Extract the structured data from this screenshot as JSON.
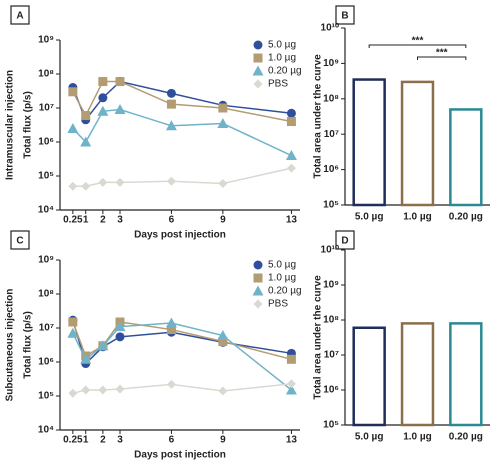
{
  "chart_data": [
    {
      "type": "line",
      "panel": "A",
      "side_label": "Intramuscular injection",
      "y_label": "Total flux (p/s)",
      "x_label": "Days post injection",
      "log_y": true,
      "legend": "top-right",
      "x": [
        0.25,
        1,
        2,
        3,
        6,
        9,
        13
      ],
      "xlim": [
        -0.5,
        13.5
      ],
      "xticks": [
        0.25,
        1,
        2,
        3,
        6,
        9,
        13
      ],
      "ylim": [
        10000,
        1000000000
      ],
      "yticks": [
        {
          "value": 10000,
          "label": "10⁴"
        },
        {
          "value": 100000,
          "label": "10⁵"
        },
        {
          "value": 1000000,
          "label": "10⁶"
        },
        {
          "value": 10000000,
          "label": "10⁷"
        },
        {
          "value": 100000000,
          "label": "10⁸"
        },
        {
          "value": 1000000000,
          "label": "10⁹"
        }
      ],
      "series": [
        {
          "name": "5.0 µg",
          "color": "#2f4f9c",
          "marker": "circle",
          "values": [
            40000000,
            4500000,
            20000000,
            60000000,
            27000000,
            12000000,
            7000000
          ]
        },
        {
          "name": "1.0 µg",
          "color": "#b39c72",
          "marker": "square",
          "values": [
            30000000,
            6000000,
            60000000,
            60000000,
            13000000,
            10000000,
            4000000
          ]
        },
        {
          "name": "0.20 µg",
          "color": "#6fb3c9",
          "marker": "triangle",
          "values": [
            2500000,
            1000000,
            8000000,
            9000000,
            3000000,
            3500000,
            400000
          ]
        },
        {
          "name": "PBS",
          "color": "#d9d9d2",
          "marker": "diamond",
          "values": [
            50000,
            50000,
            65000,
            65000,
            70000,
            60000,
            170000
          ]
        }
      ]
    },
    {
      "type": "bar",
      "panel": "B",
      "y_label": "Total area under the curve",
      "log_y": true,
      "categories": [
        "5.0 µg",
        "1.0 µg",
        "0.20 µg"
      ],
      "values": [
        350000000,
        300000000,
        50000000
      ],
      "colors": [
        "#1f2d5c",
        "#8c6e4a",
        "#2a8a94"
      ],
      "ylim": [
        100000,
        10000000000
      ],
      "yticks": [
        {
          "value": 100000,
          "label": "10⁵"
        },
        {
          "value": 1000000,
          "label": "10⁶"
        },
        {
          "value": 10000000,
          "label": "10⁷"
        },
        {
          "value": 100000000,
          "label": "10⁸"
        },
        {
          "value": 1000000000,
          "label": "10⁹"
        },
        {
          "value": 10000000000,
          "label": "10¹⁰"
        }
      ],
      "annotations": [
        "***",
        "***"
      ]
    },
    {
      "type": "line",
      "panel": "C",
      "side_label": "Subcutaneous injection",
      "y_label": "Total flux (p/s)",
      "x_label": "Days post injection",
      "log_y": true,
      "legend": "top-right",
      "x": [
        0.25,
        1,
        2,
        3,
        6,
        9,
        13
      ],
      "xlim": [
        -0.5,
        13.5
      ],
      "xticks": [
        0.25,
        1,
        2,
        3,
        6,
        9,
        13
      ],
      "ylim": [
        10000,
        1000000000
      ],
      "yticks": [
        {
          "value": 10000,
          "label": "10⁴"
        },
        {
          "value": 100000,
          "label": "10⁵"
        },
        {
          "value": 1000000,
          "label": "10⁶"
        },
        {
          "value": 10000000,
          "label": "10⁷"
        },
        {
          "value": 100000000,
          "label": "10⁸"
        },
        {
          "value": 1000000000,
          "label": "10⁹"
        }
      ],
      "series": [
        {
          "name": "5.0 µg",
          "color": "#2f4f9c",
          "marker": "circle",
          "values": [
            17000000,
            900000,
            2800000,
            5500000,
            7500000,
            3800000,
            1800000
          ]
        },
        {
          "name": "1.0 µg",
          "color": "#b39c72",
          "marker": "square",
          "values": [
            15000000,
            1500000,
            3000000,
            15000000,
            9000000,
            4000000,
            1200000
          ]
        },
        {
          "name": "0.20 µg",
          "color": "#6fb3c9",
          "marker": "triangle",
          "values": [
            7000000,
            1200000,
            3000000,
            11000000,
            14000000,
            6000000,
            150000
          ]
        },
        {
          "name": "PBS",
          "color": "#d9d9d2",
          "marker": "diamond",
          "values": [
            120000,
            150000,
            150000,
            160000,
            220000,
            140000,
            230000
          ]
        }
      ]
    },
    {
      "type": "bar",
      "panel": "D",
      "y_label": "Total area under the curve",
      "log_y": true,
      "categories": [
        "5.0 µg",
        "1.0 µg",
        "0.20 µg"
      ],
      "values": [
        60000000,
        80000000,
        80000000
      ],
      "colors": [
        "#1f2d5c",
        "#8c6e4a",
        "#2a8a94"
      ],
      "ylim": [
        100000,
        10000000000
      ],
      "yticks": [
        {
          "value": 100000,
          "label": "10⁵"
        },
        {
          "value": 1000000,
          "label": "10⁶"
        },
        {
          "value": 10000000,
          "label": "10⁷"
        },
        {
          "value": 100000000,
          "label": "10⁸"
        },
        {
          "value": 1000000000,
          "label": "10⁹"
        },
        {
          "value": 10000000000,
          "label": "10¹⁰"
        }
      ]
    }
  ]
}
